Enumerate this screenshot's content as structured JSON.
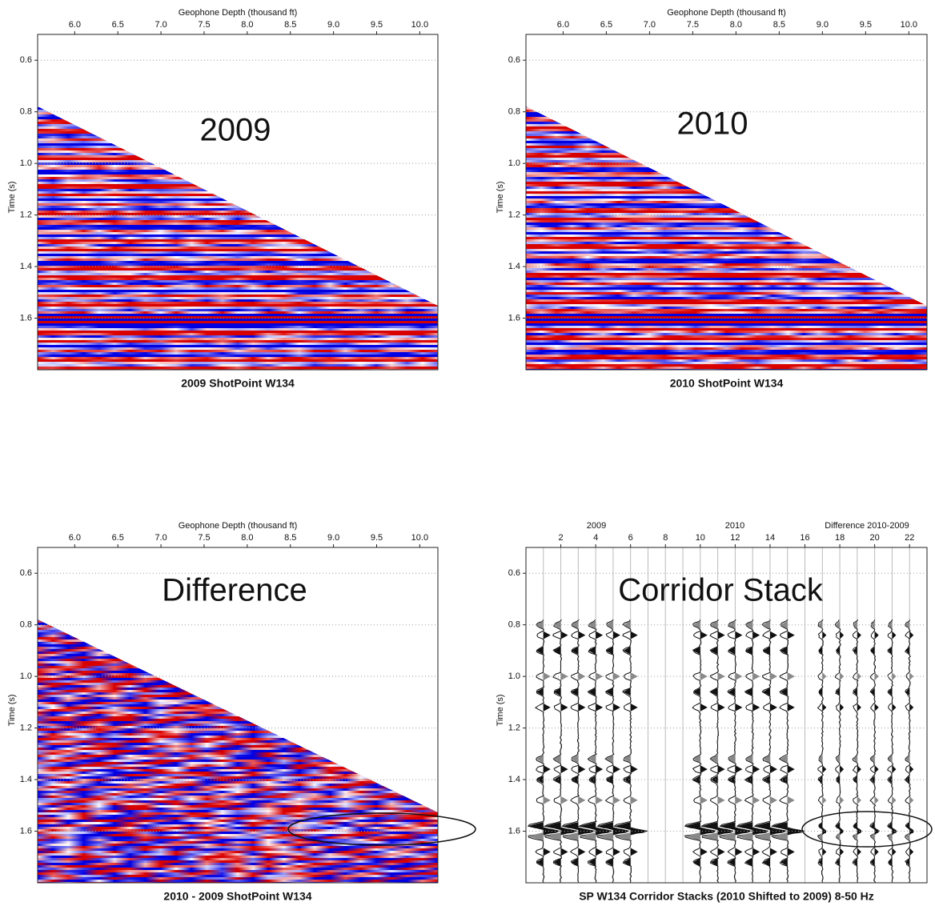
{
  "panels": [
    {
      "kind": "seismic",
      "title": "2009",
      "caption": "2009 ShotPoint W134",
      "xlabel": "Geophone Depth (thousand ft)",
      "ylabel": "Time (s)",
      "xlim": [
        5.57,
        10.21
      ],
      "xticks": [
        {
          "value": 6,
          "label": "6.0"
        },
        6.5,
        {
          "value": 7,
          "label": "7.0"
        },
        7.5,
        {
          "value": 8,
          "label": "8.0"
        },
        8.5,
        {
          "value": 9,
          "label": "9.0"
        },
        9.5,
        {
          "value": 10,
          "label": "10.0"
        }
      ],
      "ylim": [
        0.5,
        1.8
      ],
      "yticks": [
        0.6,
        0.8,
        {
          "value": 1,
          "label": "1.0"
        },
        1.2,
        1.4,
        1.6
      ]
    },
    {
      "kind": "seismic",
      "title": "2010",
      "caption": "2010 ShotPoint W134",
      "xlabel": "Geophone Depth (thousand ft)",
      "ylabel": "Time (s)",
      "xlim": [
        5.57,
        10.21
      ],
      "xticks": [
        {
          "value": 6,
          "label": "6.0"
        },
        6.5,
        {
          "value": 7,
          "label": "7.0"
        },
        7.5,
        {
          "value": 8,
          "label": "8.0"
        },
        8.5,
        {
          "value": 9,
          "label": "9.0"
        },
        9.5,
        {
          "value": 10,
          "label": "10.0"
        }
      ],
      "ylim": [
        0.5,
        1.8
      ],
      "yticks": [
        0.6,
        0.8,
        {
          "value": 1,
          "label": "1.0"
        },
        1.2,
        1.4,
        1.6
      ]
    },
    {
      "kind": "difference",
      "title": "Difference",
      "caption": "2010 - 2009 ShotPoint W134",
      "xlabel": "Geophone Depth (thousand ft)",
      "ylabel": "Time (s)",
      "xlim": [
        5.57,
        10.21
      ],
      "xticks": [
        {
          "value": 6,
          "label": "6.0"
        },
        6.5,
        {
          "value": 7,
          "label": "7.0"
        },
        7.5,
        {
          "value": 8,
          "label": "8.0"
        },
        8.5,
        {
          "value": 9,
          "label": "9.0"
        },
        9.5,
        {
          "value": 10,
          "label": "10.0"
        }
      ],
      "ylim": [
        0.5,
        1.8
      ],
      "yticks": [
        0.6,
        0.8,
        {
          "value": 1,
          "label": "1.0"
        },
        1.2,
        1.4,
        1.6
      ]
    },
    {
      "kind": "traces",
      "title": "Corridor Stack",
      "caption": "SP W134 Corridor Stacks (2010 Shifted to 2009) 8-50 Hz",
      "ylabel": "Time (s)",
      "group_labels": [
        "2009",
        "2010",
        "Difference 2010-2009"
      ],
      "xlim": [
        0,
        23
      ],
      "xticks": [
        2,
        4,
        6,
        8,
        10,
        12,
        14,
        16,
        18,
        20,
        22
      ],
      "ylim": [
        0.5,
        1.8
      ],
      "yticks": [
        0.6,
        0.8,
        {
          "value": 1,
          "label": "1.0"
        },
        1.2,
        1.4,
        1.6
      ]
    }
  ]
}
